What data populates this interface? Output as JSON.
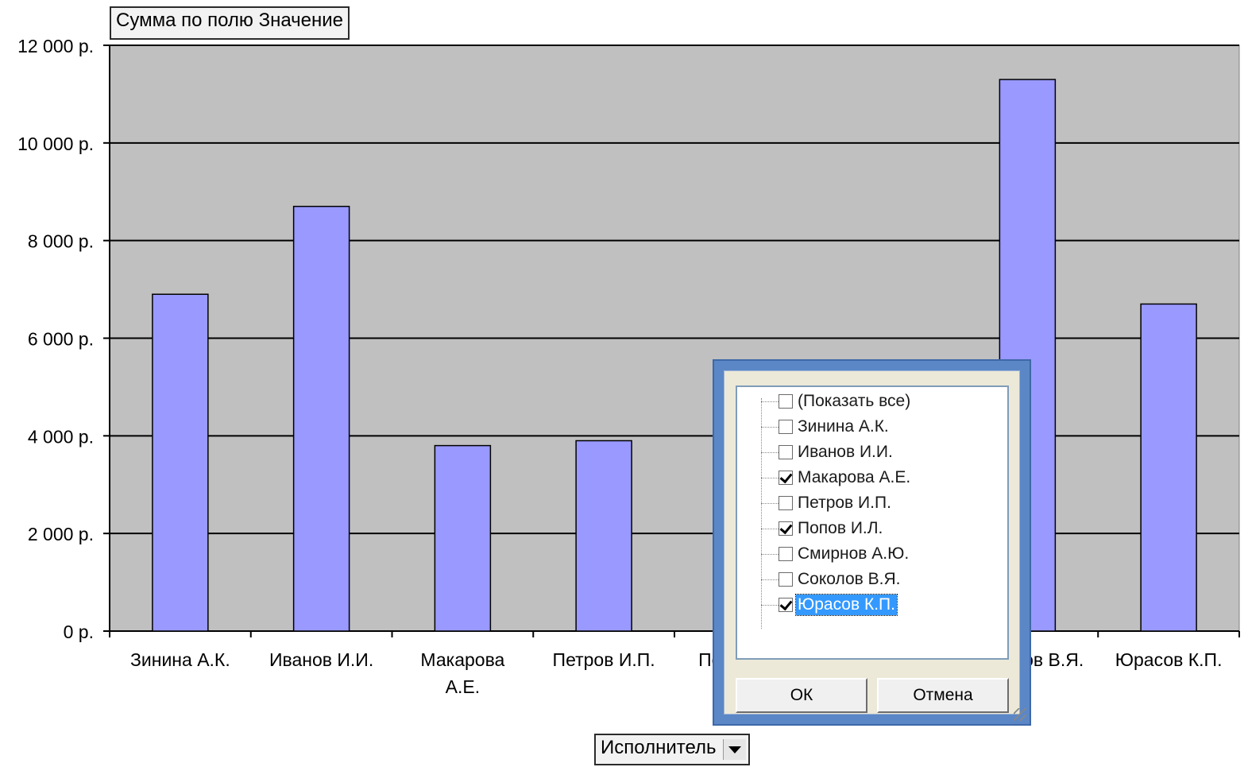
{
  "data_field_button": {
    "label": "Сумма по полю Значение"
  },
  "axis_field_button": {
    "label": "Исполнитель"
  },
  "chart_data": {
    "type": "bar",
    "categories": [
      "Зинина А.К.",
      "Иванов И.И.",
      "Макарова А.Е.",
      "Петров И.П.",
      "Попов И.Л.",
      "Смирнов А.Ю.",
      "Соколов В.Я.",
      "Юрасов К.П."
    ],
    "category_label_lines": [
      [
        "Зинина А.К."
      ],
      [
        "Иванов И.И."
      ],
      [
        "Макарова",
        "А.Е."
      ],
      [
        "Петров И.П."
      ],
      [
        "Попов И.Л."
      ],
      [
        "Смирнов А.Ю."
      ],
      [
        "Соколов В.Я."
      ],
      [
        "Юрасов К.П."
      ]
    ],
    "values": [
      6900,
      8700,
      3800,
      3900,
      null,
      null,
      11300,
      6700
    ],
    "y_ticks": [
      0,
      2000,
      4000,
      6000,
      8000,
      10000,
      12000
    ],
    "y_tick_labels": [
      "0 р.",
      "2 000 р.",
      "4 000 р.",
      "6 000 р.",
      "8 000 р.",
      "10 000 р.",
      "12 000 р."
    ],
    "ylim": [
      0,
      12000
    ],
    "grid": true,
    "colors": {
      "bar": "#9999ff",
      "plot_bg": "#c0c0c0",
      "grid": "#000000"
    }
  },
  "filter_popup": {
    "items": [
      {
        "label": "(Показать все)",
        "checked": false,
        "selected": false
      },
      {
        "label": "Зинина А.К.",
        "checked": false,
        "selected": false
      },
      {
        "label": "Иванов И.И.",
        "checked": false,
        "selected": false
      },
      {
        "label": "Макарова А.Е.",
        "checked": true,
        "selected": false
      },
      {
        "label": "Петров И.П.",
        "checked": false,
        "selected": false
      },
      {
        "label": "Попов И.Л.",
        "checked": true,
        "selected": false
      },
      {
        "label": "Смирнов А.Ю.",
        "checked": false,
        "selected": false
      },
      {
        "label": "Соколов В.Я.",
        "checked": false,
        "selected": false
      },
      {
        "label": "Юрасов К.П.",
        "checked": true,
        "selected": true
      }
    ],
    "ok_label": "ОК",
    "cancel_label": "Отмена"
  }
}
